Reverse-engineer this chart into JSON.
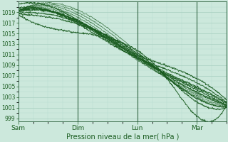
{
  "xlabel": "Pression niveau de la mer( hPa )",
  "xlim": [
    0,
    3.5
  ],
  "ylim": [
    998.5,
    1021.0
  ],
  "yticks": [
    999,
    1001,
    1003,
    1005,
    1007,
    1009,
    1011,
    1013,
    1015,
    1017,
    1019
  ],
  "xtick_labels": [
    "Sam",
    "Dim",
    "Lun",
    "Mar"
  ],
  "xtick_positions": [
    0,
    1,
    2,
    3
  ],
  "bg_color": "#cce8dc",
  "grid_color_major": "#a8cfc0",
  "grid_color_minor": "#b8ddd0",
  "line_color": "#1a5c20",
  "axis_color": "#336644",
  "text_color": "#1a5c20",
  "xlabel_fontsize": 7,
  "ytick_fontsize": 5.5,
  "xtick_fontsize": 6.5
}
